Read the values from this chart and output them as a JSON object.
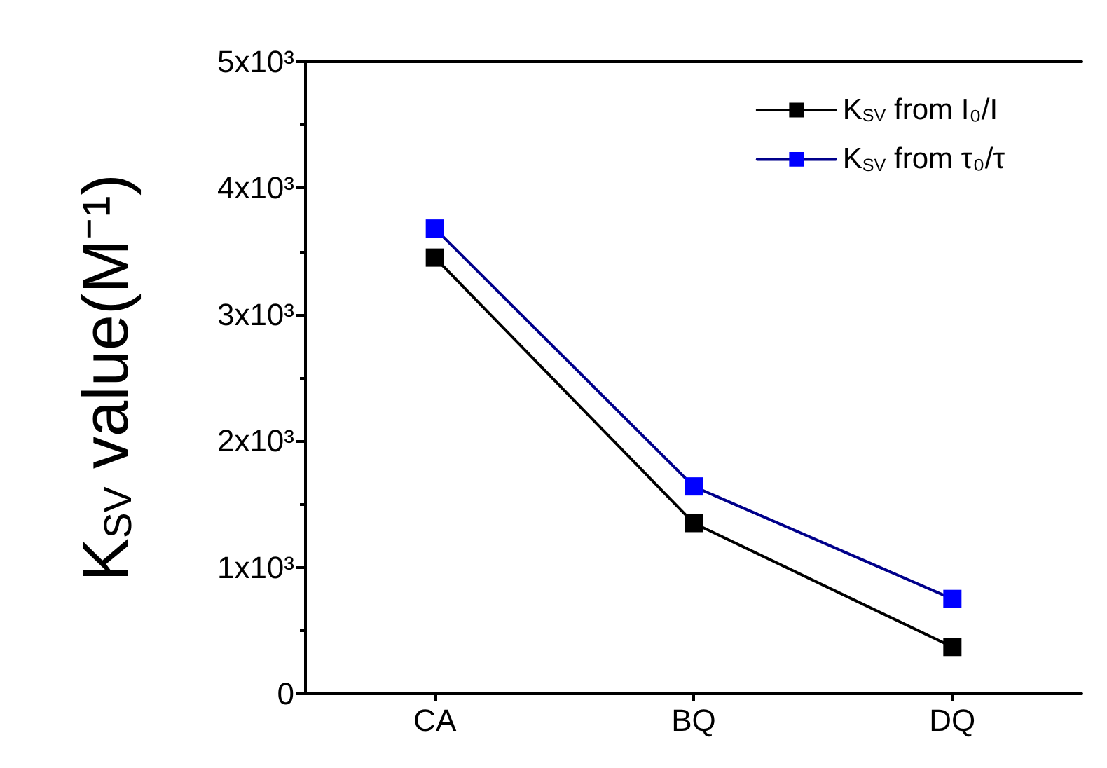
{
  "chart_data": {
    "type": "line",
    "ylabel": "K$_{SV}$ value(M⁻¹)",
    "categories": [
      "CA",
      "BQ",
      "DQ"
    ],
    "series": [
      {
        "name": "K$_{SV}$ from I₀/I",
        "color": "#000000",
        "values": [
          3450,
          1350,
          370
        ]
      },
      {
        "name": "K$_{SV}$ from τ₀/τ",
        "color": "#0000ff",
        "values": [
          3680,
          1640,
          750
        ]
      }
    ],
    "ylim": [
      0,
      5000
    ],
    "yticks": [
      0,
      {
        "value": 1000,
        "label": "1x10³"
      },
      {
        "value": 2000,
        "label": "2x10³"
      },
      {
        "value": 3000,
        "label": "3x10³"
      },
      {
        "value": 4000,
        "label": "4x10³"
      },
      {
        "value": 5000,
        "label": "5x10³"
      }
    ],
    "grid": false,
    "legend": "top right",
    "marker": "square",
    "line_style": "solid"
  }
}
